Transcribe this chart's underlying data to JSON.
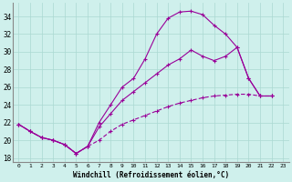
{
  "xlabel": "Windchill (Refroidissement éolien,°C)",
  "background_color": "#cff0ec",
  "grid_color": "#aad8d2",
  "line_color": "#990099",
  "curve1_x": [
    0,
    1,
    2,
    3,
    4,
    5,
    6,
    7,
    8,
    9,
    10,
    11,
    12,
    13,
    14,
    15,
    16,
    17,
    18,
    19,
    20,
    21,
    22
  ],
  "curve1_y": [
    21.8,
    21.0,
    20.3,
    20.0,
    19.5,
    18.5,
    19.3,
    22.0,
    24.0,
    26.0,
    27.0,
    29.2,
    32.0,
    33.8,
    34.5,
    34.6,
    34.2,
    33.0,
    32.0,
    30.5,
    27.0,
    25.0,
    25.0
  ],
  "curve2_x": [
    0,
    1,
    2,
    3,
    4,
    5,
    6,
    7,
    8,
    9,
    10,
    11,
    12,
    13,
    14,
    15,
    16,
    17,
    18,
    19,
    20,
    21,
    22
  ],
  "curve2_y": [
    21.8,
    21.0,
    20.3,
    20.0,
    19.5,
    18.5,
    19.3,
    21.5,
    23.0,
    24.5,
    25.5,
    26.5,
    27.5,
    28.5,
    29.2,
    30.2,
    29.5,
    29.0,
    29.5,
    30.5,
    27.0,
    25.0,
    25.0
  ],
  "curve3_x": [
    0,
    1,
    2,
    3,
    4,
    5,
    6,
    7,
    8,
    9,
    10,
    11,
    12,
    13,
    14,
    15,
    16,
    17,
    18,
    19,
    20,
    21,
    22
  ],
  "curve3_y": [
    21.8,
    21.0,
    20.3,
    20.0,
    19.5,
    18.5,
    19.3,
    20.0,
    21.0,
    21.8,
    22.3,
    22.8,
    23.3,
    23.8,
    24.2,
    24.5,
    24.8,
    25.0,
    25.1,
    25.2,
    25.2,
    25.0,
    25.0
  ],
  "ylim": [
    17.5,
    35.5
  ],
  "xlim": [
    -0.5,
    23.5
  ],
  "yticks": [
    18,
    20,
    22,
    24,
    26,
    28,
    30,
    32,
    34
  ],
  "xtick_labels": [
    "0",
    "1",
    "2",
    "3",
    "4",
    "5",
    "6",
    "7",
    "8",
    "9",
    "10",
    "11",
    "12",
    "13",
    "14",
    "15",
    "16",
    "17",
    "18",
    "19",
    "20",
    "21",
    "22",
    "23"
  ]
}
